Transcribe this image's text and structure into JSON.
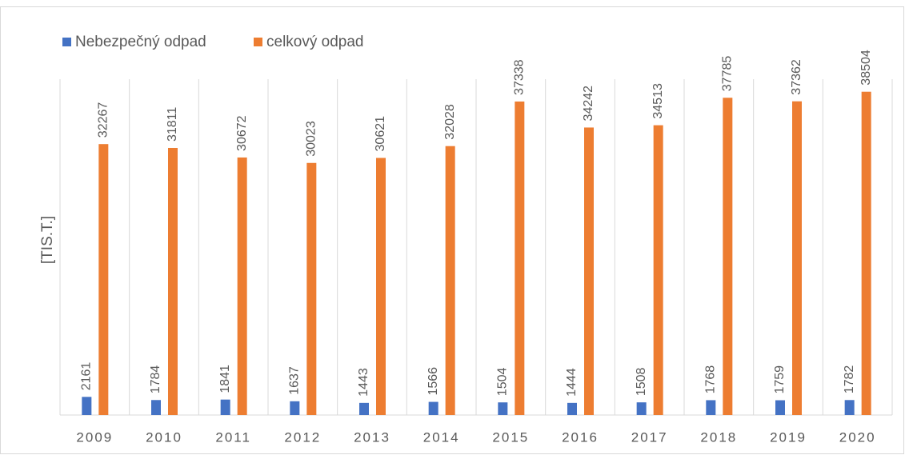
{
  "chart_data": {
    "type": "bar",
    "y_label": "[TIS.T.]",
    "categories": [
      "2009",
      "2010",
      "2011",
      "2012",
      "2013",
      "2014",
      "2015",
      "2016",
      "2017",
      "2018",
      "2019",
      "2020"
    ],
    "series": [
      {
        "name": "Nebezpečný odpad",
        "color": "#4472c4",
        "values": [
          2161,
          1784,
          1841,
          1637,
          1443,
          1566,
          1504,
          1444,
          1508,
          1768,
          1759,
          1782
        ]
      },
      {
        "name": "celkový odpad",
        "color": "#ed7d31",
        "values": [
          32267,
          31811,
          30672,
          30023,
          30621,
          32028,
          37338,
          34242,
          34513,
          37785,
          37362,
          38504
        ]
      }
    ],
    "ylim": [
      0,
      40000
    ],
    "legend": "top-left"
  }
}
